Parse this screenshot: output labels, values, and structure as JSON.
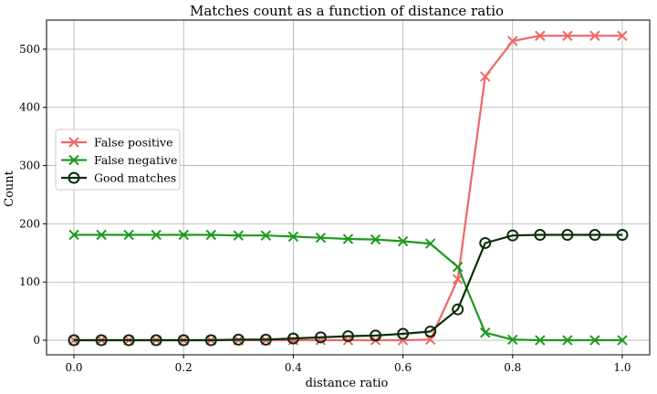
{
  "chart_data": {
    "type": "line",
    "title": "Matches count as a function of distance ratio",
    "xlabel": "distance ratio",
    "ylabel": "Count",
    "xlim": [
      -0.05,
      1.05
    ],
    "ylim": [
      -25,
      550
    ],
    "xticks": [
      0.0,
      0.2,
      0.4,
      0.6,
      0.8,
      1.0
    ],
    "xtick_labels": [
      "0.0",
      "0.2",
      "0.4",
      "0.6",
      "0.8",
      "1.0"
    ],
    "yticks": [
      0,
      100,
      200,
      300,
      400,
      500
    ],
    "ytick_labels": [
      "0",
      "100",
      "200",
      "300",
      "400",
      "500"
    ],
    "grid": true,
    "legend_position": "center-left",
    "x": [
      0.0,
      0.05,
      0.1,
      0.15,
      0.2,
      0.25,
      0.3,
      0.35,
      0.4,
      0.45,
      0.5,
      0.55,
      0.6,
      0.65,
      0.7,
      0.75,
      0.8,
      0.85,
      0.9,
      0.95,
      1.0
    ],
    "series": [
      {
        "name": "False positive",
        "color": "#f06666",
        "marker": "x",
        "values": [
          0,
          0,
          0,
          0,
          0,
          0,
          0,
          0,
          0,
          0,
          0,
          0,
          0,
          1,
          105,
          453,
          514,
          523,
          523,
          523,
          523
        ]
      },
      {
        "name": "False negative",
        "color": "#1e9a1e",
        "marker": "x",
        "values": [
          181,
          181,
          181,
          181,
          181,
          181,
          180,
          180,
          178,
          176,
          174,
          173,
          170,
          166,
          126,
          13,
          1,
          0,
          0,
          0,
          0
        ]
      },
      {
        "name": "Good matches",
        "color": "#0a2e0a",
        "marker": "o",
        "values": [
          0,
          0,
          0,
          0,
          0,
          0,
          1,
          1,
          3,
          5,
          7,
          8,
          11,
          15,
          53,
          167,
          180,
          181,
          181,
          181,
          181
        ]
      }
    ]
  }
}
